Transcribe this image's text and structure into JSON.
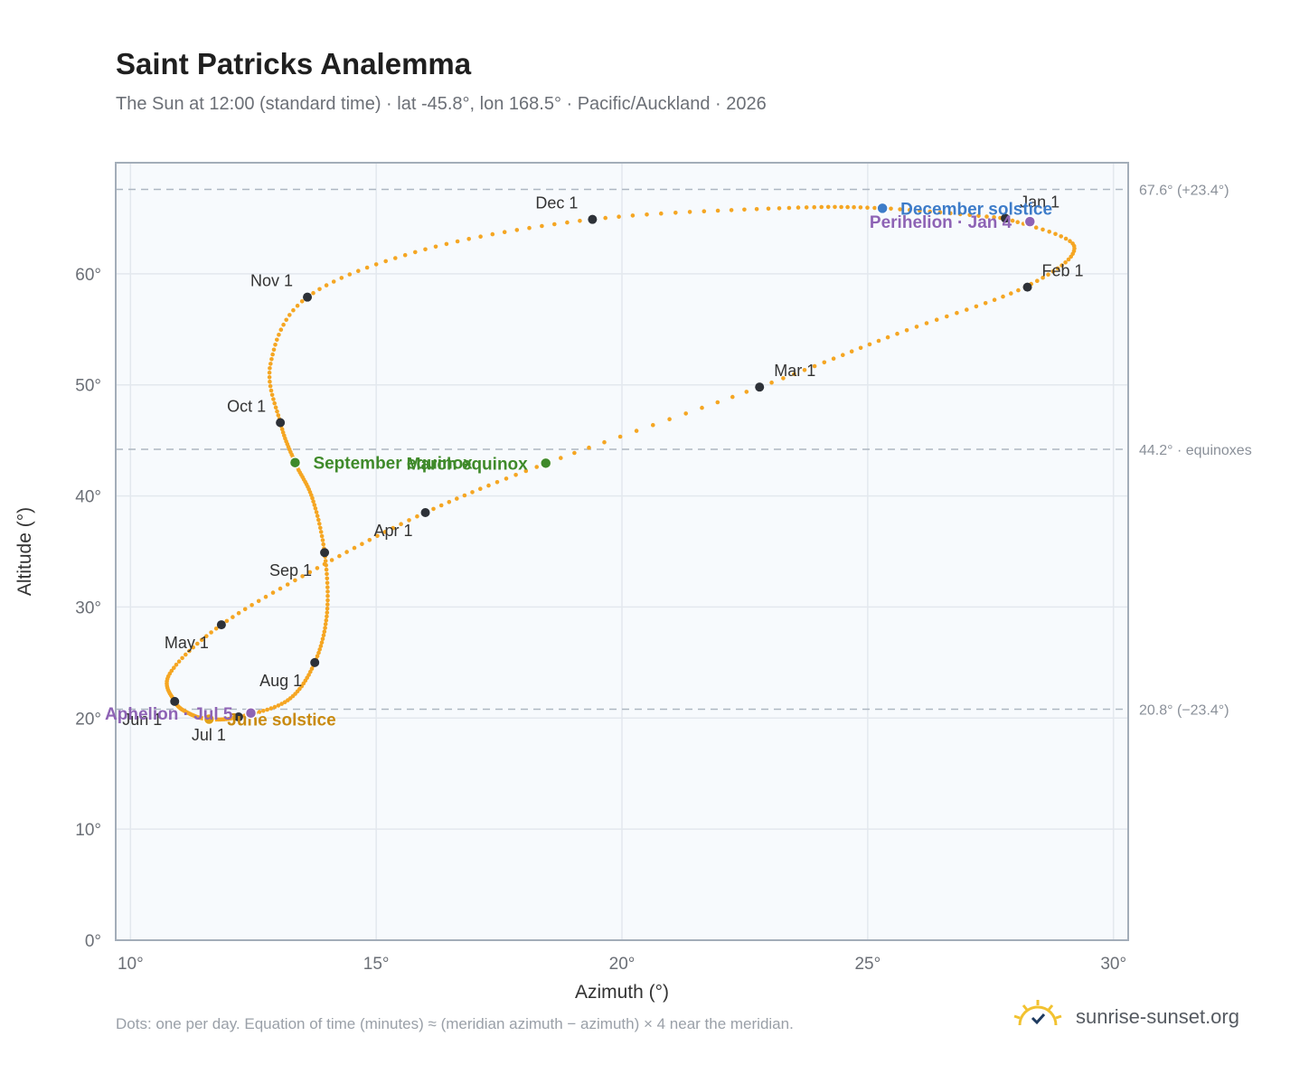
{
  "header": {
    "title": "Saint Patricks Analemma",
    "subtitle": "The Sun at 12:00 (standard time) · lat -45.8°, lon 168.5° · Pacific/Auckland · 2026"
  },
  "footer": {
    "note": "Dots: one per day. Equation of time (minutes) ≈ (meridian azimuth − azimuth) × 4 near the meridian.",
    "brand": "sunrise-sunset.org",
    "brand_icon": "sun-logo-icon"
  },
  "colors": {
    "curve": "#f5a623",
    "month_dot": "#2d3138",
    "equinox": "#3f8a2a",
    "december_solstice": "#3d7cc9",
    "june_solstice": "#e0a21a",
    "june_solstice_label": "#c98a10",
    "apsis": "#8e63b5",
    "plot_bg": "#f7fafd",
    "grid": "#e3e8ee",
    "ref_line": "#aeb7c2"
  },
  "chart_data": {
    "type": "scatter",
    "xlabel": "Azimuth (°)",
    "ylabel": "Altitude (°)",
    "xlim": [
      9.7,
      30.3
    ],
    "ylim": [
      0,
      70
    ],
    "x_ticks": [
      10,
      15,
      20,
      25,
      30
    ],
    "y_ticks": [
      0,
      10,
      20,
      30,
      40,
      50,
      60
    ],
    "grid": true,
    "series": [
      {
        "label_pattern": "one dot per day",
        "curve_points": [
          {
            "date": "Jan 1",
            "x": 27.8,
            "y": 65.0
          },
          {
            "date": "Jan 15",
            "x": 29.2,
            "y": 62.5
          },
          {
            "date": "Feb 1",
            "x": 28.2,
            "y": 58.8
          },
          {
            "date": "Feb 15",
            "x": 25.6,
            "y": 54.6
          },
          {
            "date": "Mar 1",
            "x": 22.8,
            "y": 49.8
          },
          {
            "date": "Mar 20",
            "x": 18.5,
            "y": 43.0
          },
          {
            "date": "Apr 1",
            "x": 16.0,
            "y": 38.5
          },
          {
            "date": "Apr 15",
            "x": 13.8,
            "y": 33.5
          },
          {
            "date": "May 1",
            "x": 11.85,
            "y": 28.4
          },
          {
            "date": "May 15",
            "x": 10.8,
            "y": 24.0
          },
          {
            "date": "Jun 1",
            "x": 10.9,
            "y": 21.5
          },
          {
            "date": "Jun 15",
            "x": 11.2,
            "y": 20.4
          },
          {
            "date": "Jun 21",
            "x": 11.6,
            "y": 19.9
          },
          {
            "date": "Jul 1",
            "x": 12.2,
            "y": 20.1
          },
          {
            "date": "Jul 15",
            "x": 13.2,
            "y": 21.6
          },
          {
            "date": "Aug 1",
            "x": 13.75,
            "y": 25.0
          },
          {
            "date": "Aug 15",
            "x": 14.0,
            "y": 29.5
          },
          {
            "date": "Sep 1",
            "x": 13.95,
            "y": 34.9
          },
          {
            "date": "Sep 15",
            "x": 13.7,
            "y": 39.8
          },
          {
            "date": "Sep 23",
            "x": 13.35,
            "y": 43.0
          },
          {
            "date": "Oct 1",
            "x": 13.05,
            "y": 46.6
          },
          {
            "date": "Oct 15",
            "x": 12.85,
            "y": 51.9
          },
          {
            "date": "Nov 1",
            "x": 13.6,
            "y": 57.9
          },
          {
            "date": "Nov 15",
            "x": 16.0,
            "y": 62.2
          },
          {
            "date": "Dec 1",
            "x": 19.4,
            "y": 64.9
          },
          {
            "date": "Dec 15",
            "x": 23.2,
            "y": 65.9
          },
          {
            "date": "Dec 21",
            "x": 25.3,
            "y": 65.9
          },
          {
            "date": "Dec 31",
            "x": 27.8,
            "y": 65.0
          }
        ]
      }
    ],
    "month_markers": [
      {
        "label": "Jan 1",
        "x": 27.8,
        "y": 65.0,
        "label_pos": "above-right"
      },
      {
        "label": "Feb 1",
        "x": 28.25,
        "y": 58.8,
        "label_pos": "above-right"
      },
      {
        "label": "Mar 1",
        "x": 22.8,
        "y": 49.8,
        "label_pos": "above-right"
      },
      {
        "label": "Apr 1",
        "x": 16.0,
        "y": 38.5,
        "label_pos": "below-left"
      },
      {
        "label": "May 1",
        "x": 11.85,
        "y": 28.4,
        "label_pos": "below-left"
      },
      {
        "label": "Jun 1",
        "x": 10.9,
        "y": 21.5,
        "label_pos": "below-left"
      },
      {
        "label": "Jul 1",
        "x": 12.2,
        "y": 20.1,
        "label_pos": "below-left"
      },
      {
        "label": "Aug 1",
        "x": 13.75,
        "y": 25.0,
        "label_pos": "below-left"
      },
      {
        "label": "Sep 1",
        "x": 13.95,
        "y": 34.9,
        "label_pos": "below-left"
      },
      {
        "label": "Oct 1",
        "x": 13.05,
        "y": 46.6,
        "label_pos": "above-left"
      },
      {
        "label": "Nov 1",
        "x": 13.6,
        "y": 57.9,
        "label_pos": "above-left"
      },
      {
        "label": "Dec 1",
        "x": 19.4,
        "y": 64.9,
        "label_pos": "above-left"
      }
    ],
    "events": [
      {
        "label": "December solstice",
        "x": 25.3,
        "y": 65.9,
        "kind": "december_solstice",
        "label_pos": "right"
      },
      {
        "label": "Perihelion · Jan 4",
        "x": 28.3,
        "y": 64.7,
        "kind": "apsis",
        "label_pos": "left"
      },
      {
        "label": "March equinox",
        "x": 18.45,
        "y": 42.95,
        "kind": "equinox",
        "label_pos": "left"
      },
      {
        "label": "September equinox",
        "x": 13.35,
        "y": 43.0,
        "kind": "equinox",
        "label_pos": "right"
      },
      {
        "label": "June solstice",
        "x": 11.6,
        "y": 19.9,
        "kind": "june_solstice",
        "label_pos": "right"
      },
      {
        "label": "Aphelion · Jul 5",
        "x": 12.45,
        "y": 20.45,
        "kind": "apsis",
        "label_pos": "left"
      }
    ],
    "reference_lines": [
      {
        "y": 67.6,
        "label": "67.6° (+23.4°)"
      },
      {
        "y": 44.2,
        "label": "44.2° · equinoxes"
      },
      {
        "y": 20.8,
        "label": "20.8° (−23.4°)"
      }
    ]
  }
}
